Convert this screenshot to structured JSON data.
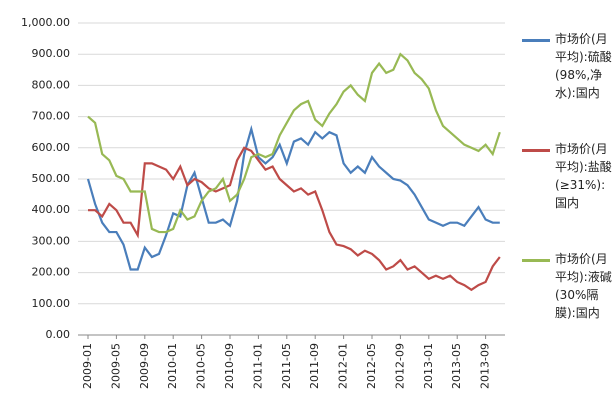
{
  "chart_data": {
    "type": "line",
    "categories": [
      "2009-01",
      null,
      null,
      null,
      "2009-05",
      null,
      null,
      null,
      "2009-09",
      null,
      null,
      null,
      "2010-01",
      null,
      null,
      null,
      "2010-05",
      null,
      null,
      null,
      "2010-09",
      null,
      null,
      null,
      "2011-01",
      null,
      null,
      null,
      "2011-05",
      null,
      null,
      null,
      "2011-09",
      null,
      null,
      null,
      "2012-01",
      null,
      null,
      null,
      "2012-05",
      null,
      null,
      null,
      "2012-09",
      null,
      null,
      null,
      "2013-01",
      null,
      null,
      null,
      "2013-05",
      null,
      null,
      null,
      "2013-09",
      null,
      null
    ],
    "series": [
      {
        "name": "市场价(月平均):硫酸(98%,净水):国内",
        "color": "#4a7ebb",
        "values": [
          500,
          420,
          360,
          330,
          330,
          290,
          210,
          210,
          280,
          250,
          260,
          320,
          390,
          380,
          480,
          520,
          440,
          360,
          360,
          370,
          350,
          430,
          580,
          660,
          570,
          550,
          570,
          610,
          550,
          620,
          630,
          610,
          650,
          630,
          650,
          640,
          550,
          520,
          540,
          520,
          570,
          540,
          520,
          500,
          495,
          480,
          450,
          410,
          370,
          360,
          350,
          360,
          360,
          350,
          380,
          410,
          370,
          360,
          360
        ]
      },
      {
        "name": "市场价(月平均):盐酸(≥31%):国内",
        "color": "#be4b48",
        "values": [
          400,
          400,
          380,
          420,
          400,
          360,
          360,
          320,
          550,
          550,
          540,
          530,
          500,
          540,
          480,
          500,
          490,
          470,
          460,
          470,
          480,
          560,
          600,
          590,
          560,
          530,
          540,
          500,
          480,
          460,
          470,
          450,
          460,
          400,
          330,
          290,
          285,
          275,
          255,
          270,
          260,
          240,
          210,
          220,
          240,
          210,
          220,
          200,
          180,
          190,
          180,
          190,
          170,
          160,
          145,
          160,
          170,
          220,
          250
        ]
      },
      {
        "name": "市场价(月平均):液碱(30%隔膜):国内",
        "color": "#98b954",
        "values": [
          700,
          680,
          580,
          560,
          510,
          500,
          460,
          460,
          460,
          340,
          330,
          330,
          340,
          400,
          370,
          380,
          430,
          460,
          470,
          500,
          430,
          450,
          500,
          570,
          580,
          570,
          580,
          640,
          680,
          720,
          740,
          750,
          690,
          670,
          710,
          740,
          780,
          800,
          770,
          750,
          840,
          870,
          840,
          850,
          900,
          880,
          840,
          820,
          790,
          720,
          670,
          650,
          630,
          610,
          600,
          590,
          610,
          580,
          650
        ]
      }
    ],
    "ylim": [
      0,
      1000
    ],
    "yticks": [
      {
        "value": 0,
        "label": "0.00"
      },
      {
        "value": 100,
        "label": "100.00"
      },
      {
        "value": 200,
        "label": "200.00"
      },
      {
        "value": 300,
        "label": "300.00"
      },
      {
        "value": 400,
        "label": "400.00"
      },
      {
        "value": 500,
        "label": "500.00"
      },
      {
        "value": 600,
        "label": "600.00"
      },
      {
        "value": 700,
        "label": "700.00"
      },
      {
        "value": 800,
        "label": "800.00"
      },
      {
        "value": 900,
        "label": "900.00"
      },
      {
        "value": 1000,
        "label": "1,000.00"
      }
    ],
    "grid": true
  }
}
